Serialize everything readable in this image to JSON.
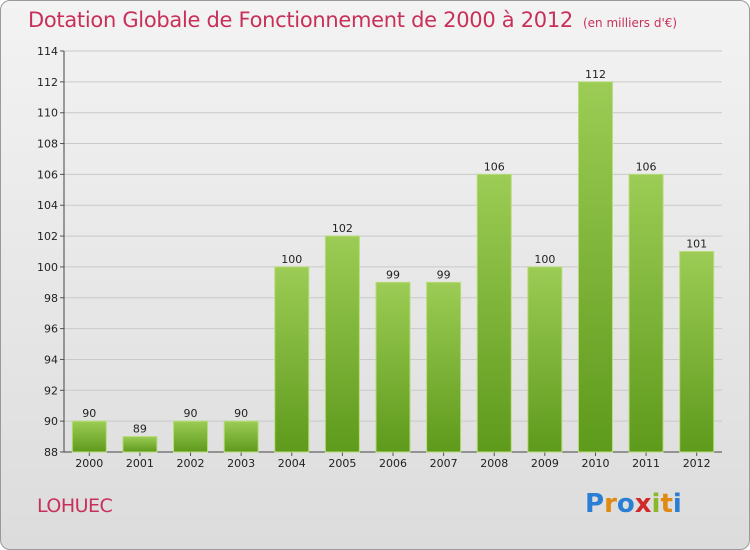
{
  "title": "Dotation Globale de Fonctionnement de 2000 à 2012",
  "unit": "(en milliers d'€)",
  "town": "LOHUEC",
  "logo": {
    "letters": [
      "P",
      "r",
      "o",
      "x",
      "i",
      "t",
      "i"
    ],
    "colors": [
      "#2a7fd4",
      "#e08a12",
      "#2a7fd4",
      "#d02a2a",
      "#8ab82a",
      "#e08a12",
      "#2a7fd4"
    ]
  },
  "chart_data": {
    "type": "bar",
    "categories": [
      "2000",
      "2001",
      "2002",
      "2003",
      "2004",
      "2005",
      "2006",
      "2007",
      "2008",
      "2009",
      "2010",
      "2011",
      "2012"
    ],
    "values": [
      90,
      89,
      90,
      90,
      100,
      102,
      99,
      99,
      106,
      100,
      112,
      106,
      101
    ],
    "ylim": [
      88,
      114
    ],
    "yticks": [
      88,
      90,
      92,
      94,
      96,
      98,
      100,
      102,
      104,
      106,
      108,
      110,
      112,
      114
    ],
    "grid": true,
    "bar_color": "#7dbb32"
  }
}
